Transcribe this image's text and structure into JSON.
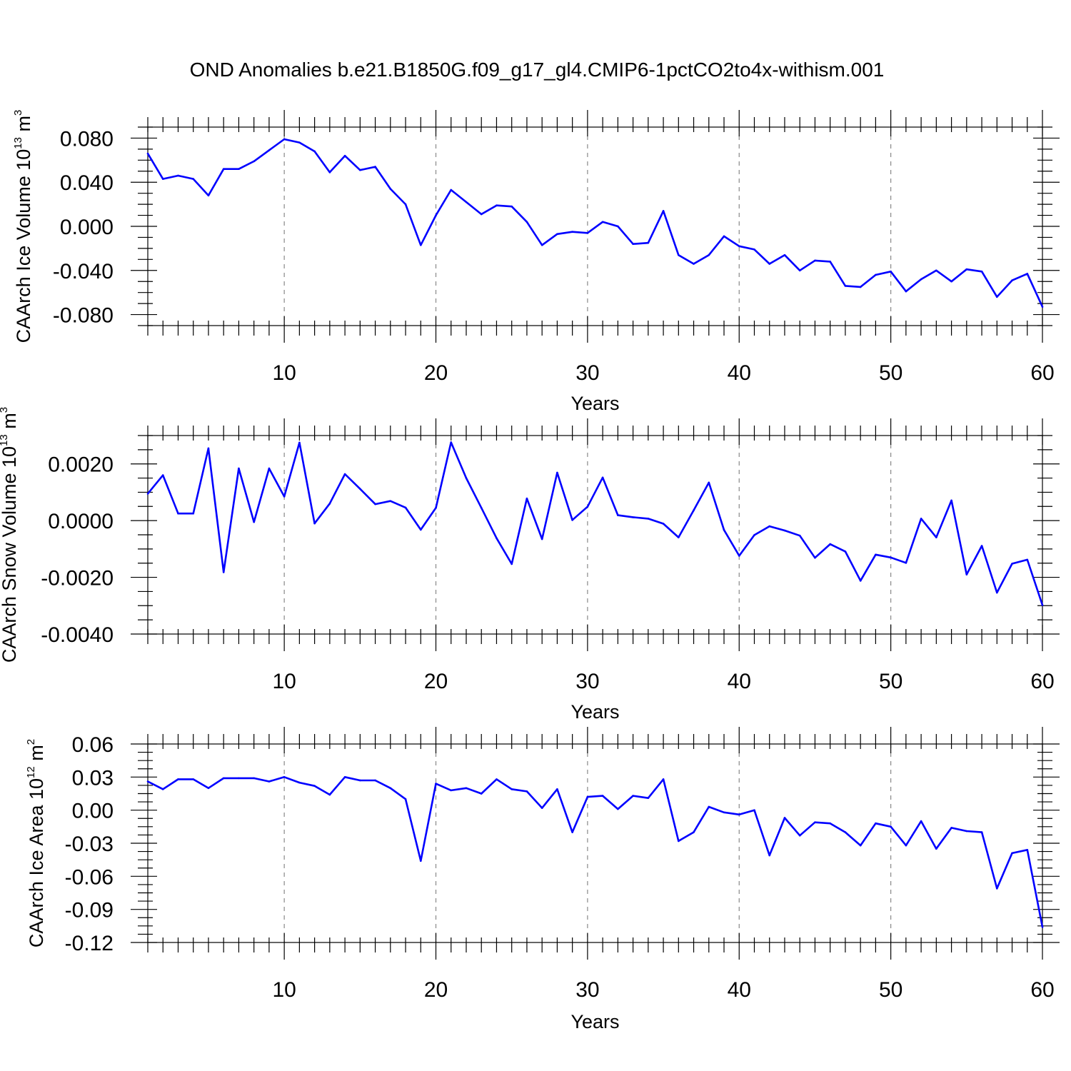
{
  "title": "OND Anomalies b.e21.B1850G.f09_g17_gl4.CMIP6-1pctCO2to4x-withism.001",
  "line_color": "#0000ff",
  "chart_data": [
    {
      "type": "line",
      "ylabel": "CAArch Ice Volume 10",
      "ylabel_exponent": "13",
      "ylabel_unit": " m",
      "ylabel_unit_exponent": "3",
      "xlabel": "Years",
      "xlim": [
        1,
        60
      ],
      "ylim": [
        -0.09,
        0.09
      ],
      "xticks": [
        10,
        20,
        30,
        40,
        50,
        60
      ],
      "xtick_labels": [
        "10",
        "20",
        "30",
        "40",
        "50",
        "60"
      ],
      "yticks": [
        0.08,
        0.04,
        0.0,
        -0.04,
        -0.08
      ],
      "ytick_labels": [
        "0.080",
        "0.040",
        "0.000",
        "-0.040",
        "-0.080"
      ],
      "gridlines_x": [
        10,
        20,
        30,
        40,
        50
      ],
      "x": [
        1,
        2,
        3,
        4,
        5,
        6,
        7,
        8,
        9,
        10,
        11,
        12,
        13,
        14,
        15,
        16,
        17,
        18,
        19,
        20,
        21,
        22,
        23,
        24,
        25,
        26,
        27,
        28,
        29,
        30,
        31,
        32,
        33,
        34,
        35,
        36,
        37,
        38,
        39,
        40,
        41,
        42,
        43,
        44,
        45,
        46,
        47,
        48,
        49,
        50,
        51,
        52,
        53,
        54,
        55,
        56,
        57,
        58,
        59,
        60
      ],
      "values": [
        0.066,
        0.043,
        0.046,
        0.043,
        0.028,
        0.052,
        0.052,
        0.059,
        0.069,
        0.079,
        0.076,
        0.068,
        0.049,
        0.064,
        0.051,
        0.054,
        0.034,
        0.02,
        -0.017,
        0.01,
        0.033,
        0.022,
        0.011,
        0.019,
        0.018,
        0.004,
        -0.017,
        -0.007,
        -0.005,
        -0.006,
        0.004,
        0.0,
        -0.016,
        -0.015,
        0.014,
        -0.026,
        -0.034,
        -0.026,
        -0.009,
        -0.018,
        -0.021,
        -0.034,
        -0.026,
        -0.04,
        -0.031,
        -0.032,
        -0.054,
        -0.055,
        -0.044,
        -0.041,
        -0.059,
        -0.048,
        -0.04,
        -0.05,
        -0.039,
        -0.041,
        -0.064,
        -0.049,
        -0.043,
        -0.073
      ]
    },
    {
      "type": "line",
      "ylabel": "CAArch Snow Volume 10",
      "ylabel_exponent": "13",
      "ylabel_unit": " m",
      "ylabel_unit_exponent": "3",
      "xlabel": "Years",
      "xlim": [
        1,
        60
      ],
      "ylim": [
        -0.004,
        0.003
      ],
      "xticks": [
        10,
        20,
        30,
        40,
        50,
        60
      ],
      "xtick_labels": [
        "10",
        "20",
        "30",
        "40",
        "50",
        "60"
      ],
      "yticks": [
        0.002,
        0.0,
        -0.002,
        -0.004
      ],
      "ytick_labels": [
        "0.0020",
        "0.0000",
        "-0.0020",
        "-0.0040"
      ],
      "gridlines_x": [
        10,
        20,
        30,
        40,
        50
      ],
      "x": [
        1,
        2,
        3,
        4,
        5,
        6,
        7,
        8,
        9,
        10,
        11,
        12,
        13,
        14,
        15,
        16,
        17,
        18,
        19,
        20,
        21,
        22,
        23,
        24,
        25,
        26,
        27,
        28,
        29,
        30,
        31,
        32,
        33,
        34,
        35,
        36,
        37,
        38,
        39,
        40,
        41,
        42,
        43,
        44,
        45,
        46,
        47,
        48,
        49,
        50,
        51,
        52,
        53,
        54,
        55,
        56,
        57,
        58,
        59,
        60
      ],
      "values": [
        0.00095,
        0.0016,
        0.00025,
        0.00025,
        0.00255,
        -0.00182,
        0.00184,
        -5e-05,
        0.00184,
        0.00085,
        0.00275,
        -0.0001,
        0.0006,
        0.00164,
        0.00112,
        0.00058,
        0.00069,
        0.00046,
        -0.00032,
        0.00045,
        0.00276,
        0.0015,
        0.00045,
        -0.00062,
        -0.00153,
        0.00078,
        -0.00065,
        0.00169,
        2e-05,
        0.00049,
        0.00152,
        0.00019,
        0.00012,
        7e-05,
        -0.00011,
        -0.00059,
        0.00036,
        0.00134,
        -0.00033,
        -0.00124,
        -0.00051,
        -0.0002,
        -0.00035,
        -0.00053,
        -0.00131,
        -0.00083,
        -0.00109,
        -0.00212,
        -0.0012,
        -0.0013,
        -0.00149,
        7e-05,
        -0.00059,
        0.00071,
        -0.0019,
        -0.00089,
        -0.00254,
        -0.00152,
        -0.00138,
        -0.00298
      ]
    },
    {
      "type": "line",
      "ylabel": "CAArch Ice Area 10",
      "ylabel_exponent": "12",
      "ylabel_unit": " m",
      "ylabel_unit_exponent": "2",
      "xlabel": "Years",
      "xlim": [
        1,
        60
      ],
      "ylim": [
        -0.12,
        0.06
      ],
      "xticks": [
        10,
        20,
        30,
        40,
        50,
        60
      ],
      "xtick_labels": [
        "10",
        "20",
        "30",
        "40",
        "50",
        "60"
      ],
      "yticks": [
        0.06,
        0.03,
        0.0,
        -0.03,
        -0.06,
        -0.09,
        -0.12
      ],
      "ytick_labels": [
        "0.06",
        "0.03",
        "0.00",
        "-0.03",
        "-0.06",
        "-0.09",
        "-0.12"
      ],
      "gridlines_x": [
        10,
        20,
        30,
        40,
        50
      ],
      "x": [
        1,
        2,
        3,
        4,
        5,
        6,
        7,
        8,
        9,
        10,
        11,
        12,
        13,
        14,
        15,
        16,
        17,
        18,
        19,
        20,
        21,
        22,
        23,
        24,
        25,
        26,
        27,
        28,
        29,
        30,
        31,
        32,
        33,
        34,
        35,
        36,
        37,
        38,
        39,
        40,
        41,
        42,
        43,
        44,
        45,
        46,
        47,
        48,
        49,
        50,
        51,
        52,
        53,
        54,
        55,
        56,
        57,
        58,
        59,
        60
      ],
      "values": [
        0.026,
        0.019,
        0.028,
        0.028,
        0.02,
        0.029,
        0.029,
        0.029,
        0.026,
        0.03,
        0.025,
        0.022,
        0.014,
        0.03,
        0.027,
        0.027,
        0.02,
        0.01,
        -0.046,
        0.024,
        0.018,
        0.02,
        0.015,
        0.028,
        0.019,
        0.017,
        0.002,
        0.019,
        -0.02,
        0.012,
        0.013,
        0.001,
        0.013,
        0.011,
        0.028,
        -0.028,
        -0.02,
        0.003,
        -0.002,
        -0.004,
        0.0,
        -0.041,
        -0.007,
        -0.023,
        -0.011,
        -0.012,
        -0.02,
        -0.032,
        -0.012,
        -0.015,
        -0.032,
        -0.01,
        -0.035,
        -0.016,
        -0.019,
        -0.02,
        -0.071,
        -0.039,
        -0.036,
        -0.106
      ]
    }
  ]
}
